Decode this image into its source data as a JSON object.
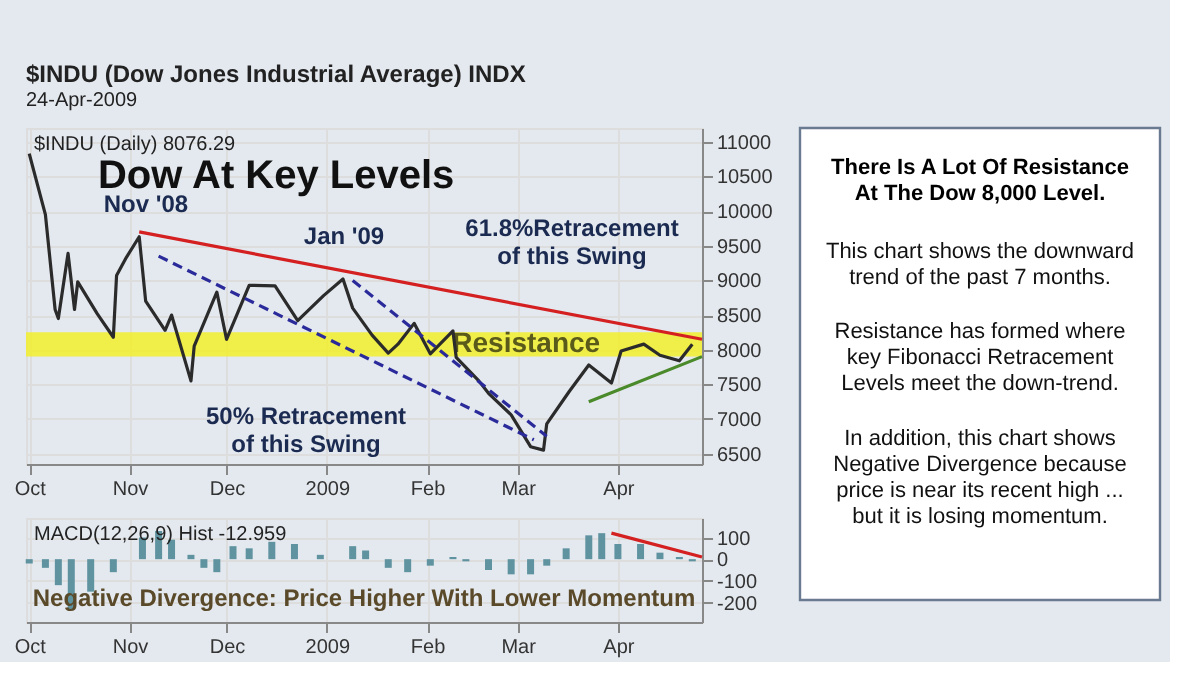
{
  "chart_data": [
    {
      "type": "line",
      "title": "Dow At Key Levels",
      "xlim": [
        "2008-09-30",
        "2009-04-27"
      ],
      "xticks": [
        {
          "value": "2008-10-01",
          "label": "Oct"
        },
        {
          "value": "2008-11-01",
          "label": "Nov"
        },
        {
          "value": "2008-12-01",
          "label": "Dec"
        },
        {
          "value": "2009-01-01",
          "label": "2009"
        },
        {
          "value": "2009-02-01",
          "label": "Feb"
        },
        {
          "value": "2009-03-01",
          "label": "Mar"
        },
        {
          "value": "2009-04-01",
          "label": "Apr"
        }
      ],
      "ylim": [
        6350,
        11200
      ],
      "yticks": [
        6500,
        7000,
        7500,
        8000,
        8500,
        9000,
        9500,
        10000,
        10500,
        11000
      ],
      "grid": true,
      "bands": [
        {
          "axis": "y",
          "from": 7900,
          "to": 8250,
          "label": "Resistance",
          "color": "#f2ee2a"
        }
      ],
      "series": [
        {
          "color": "#2b2b2b",
          "x": [
            "2008-10-01",
            "2008-10-06",
            "2008-10-09",
            "2008-10-10",
            "2008-10-13",
            "2008-10-15",
            "2008-10-16",
            "2008-10-22",
            "2008-10-27",
            "2008-10-28",
            "2008-10-31",
            "2008-11-04",
            "2008-11-06",
            "2008-11-12",
            "2008-11-14",
            "2008-11-20",
            "2008-11-21",
            "2008-11-28",
            "2008-12-01",
            "2008-12-08",
            "2008-12-16",
            "2008-12-23",
            "2008-12-31",
            "2009-01-06",
            "2009-01-09",
            "2009-01-15",
            "2009-01-20",
            "2009-01-23",
            "2009-01-28",
            "2009-02-02",
            "2009-02-09",
            "2009-02-10",
            "2009-02-17",
            "2009-02-20",
            "2009-02-27",
            "2009-03-05",
            "2009-03-09",
            "2009-03-10",
            "2009-03-17",
            "2009-03-23",
            "2009-03-30",
            "2009-04-02",
            "2009-04-09",
            "2009-04-14",
            "2009-04-20",
            "2009-04-24"
          ],
          "values": [
            10830,
            9950,
            8580,
            8450,
            9390,
            8580,
            8980,
            8520,
            8180,
            9070,
            9330,
            9630,
            8700,
            8280,
            8500,
            7550,
            8050,
            8830,
            8150,
            8930,
            8920,
            8420,
            8780,
            9020,
            8600,
            8210,
            7950,
            8080,
            8380,
            7940,
            8270,
            7890,
            7550,
            7370,
            7060,
            6600,
            6550,
            6930,
            7400,
            7780,
            7520,
            7980,
            8080,
            7920,
            7840,
            8080
          ]
        },
        {
          "type": "line",
          "color": "#d42020",
          "x": [
            "2008-11-04",
            "2009-04-27"
          ],
          "values": [
            9700,
            8150
          ]
        },
        {
          "type": "line",
          "color": "#2a2a9a",
          "line_style": "dashed",
          "x": [
            "2008-11-10",
            "2009-03-06"
          ],
          "values": [
            9350,
            6700
          ]
        },
        {
          "type": "line",
          "color": "#2a2a9a",
          "line_style": "dashed",
          "x": [
            "2009-01-09",
            "2009-03-10"
          ],
          "values": [
            9000,
            6750
          ]
        },
        {
          "type": "line",
          "color": "#4a8a2a",
          "x": [
            "2009-03-23",
            "2009-04-27"
          ],
          "values": [
            7250,
            7900
          ]
        }
      ],
      "annotations": [
        "$INDU (Dow Jones Industrial Average) INDX",
        "24-Apr-2009",
        "$INDU (Daily) 8076.29",
        "Nov '08",
        "Jan '09",
        "61.8%Retracement\nof this Swing",
        "50% Retracement\nof this Swing"
      ]
    },
    {
      "type": "bar",
      "xlim": [
        "2008-09-30",
        "2009-04-27"
      ],
      "xticks": [
        {
          "value": "2008-10-01",
          "label": "Oct"
        },
        {
          "value": "2008-11-01",
          "label": "Nov"
        },
        {
          "value": "2008-12-01",
          "label": "Dec"
        },
        {
          "value": "2009-01-01",
          "label": "2009"
        },
        {
          "value": "2009-02-01",
          "label": "Feb"
        },
        {
          "value": "2009-03-01",
          "label": "Mar"
        },
        {
          "value": "2009-04-01",
          "label": "Apr"
        }
      ],
      "ylim": [
        -290,
        190
      ],
      "yticks": [
        -200,
        -100,
        0,
        100
      ],
      "grid": true,
      "series": [
        {
          "color": "#5f93a0",
          "x": [
            "2008-10-01",
            "2008-10-06",
            "2008-10-10",
            "2008-10-14",
            "2008-10-20",
            "2008-10-27",
            "2008-10-31",
            "2008-11-05",
            "2008-11-10",
            "2008-11-14",
            "2008-11-20",
            "2008-11-24",
            "2008-11-28",
            "2008-12-03",
            "2008-12-08",
            "2008-12-15",
            "2008-12-22",
            "2008-12-30",
            "2009-01-05",
            "2009-01-09",
            "2009-01-13",
            "2009-01-20",
            "2009-01-26",
            "2009-02-02",
            "2009-02-09",
            "2009-02-13",
            "2009-02-20",
            "2009-02-27",
            "2009-03-05",
            "2009-03-10",
            "2009-03-16",
            "2009-03-23",
            "2009-03-27",
            "2009-04-01",
            "2009-04-08",
            "2009-04-14",
            "2009-04-20",
            "2009-04-24"
          ],
          "values": [
            -20,
            -40,
            -120,
            -230,
            -150,
            -60,
            0,
            100,
            130,
            90,
            20,
            -40,
            -60,
            60,
            50,
            80,
            70,
            20,
            0,
            60,
            40,
            -40,
            -60,
            -30,
            10,
            -10,
            -50,
            -70,
            -70,
            -30,
            50,
            110,
            120,
            70,
            70,
            30,
            10,
            -10
          ]
        },
        {
          "type": "line",
          "color": "#d42020",
          "x": [
            "2009-03-30",
            "2009-04-27"
          ],
          "values": [
            120,
            10
          ]
        }
      ],
      "annotations": [
        "MACD(12,26,9) Hist -12.959",
        "Negative Divergence: Price Higher With Lower Momentum"
      ]
    },
    {
      "type": "other",
      "title": "There Is A Lot Of Resistance\nAt The Dow 8,000 Level.",
      "annotations": [
        "This chart shows the downward\ntrend of the past 7 months.",
        "Resistance has formed where\nkey Fibonacci Retracement\nLevels meet the down-trend.",
        "In addition, this chart shows\nNegative Divergence because\nprice is near its recent high ...\nbut it is losing momentum."
      ]
    }
  ]
}
